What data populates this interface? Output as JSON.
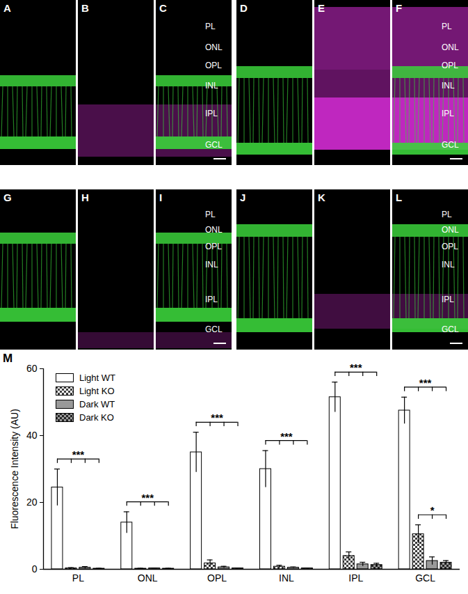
{
  "panels": {
    "letters": [
      "A",
      "B",
      "C",
      "D",
      "E",
      "F",
      "G",
      "H",
      "I",
      "J",
      "K",
      "L"
    ],
    "layers": [
      "PL",
      "ONL",
      "OPL",
      "INL",
      "IPL",
      "GCL"
    ]
  },
  "chart_data": {
    "type": "bar",
    "title": "M",
    "categories": [
      "PL",
      "ONL",
      "OPL",
      "INL",
      "IPL",
      "GCL"
    ],
    "y_label": "Fluorescence Intensity (AU)",
    "ylim": [
      0,
      60
    ],
    "yticks": [
      0,
      20,
      40,
      60
    ],
    "legend": "top-left",
    "series": [
      {
        "name": "Light WT",
        "color": "#ffffff",
        "marker": "solid",
        "values": [
          24.5,
          14,
          35,
          30,
          51.5,
          47.5
        ],
        "errors": [
          5.5,
          3.2,
          6,
          5.5,
          4.5,
          4
        ]
      },
      {
        "name": "Light KO",
        "color": "#ffffff",
        "marker": "checkered",
        "values": [
          0.3,
          0.2,
          1.8,
          0.8,
          4,
          10.5
        ],
        "errors": [
          0.2,
          0.1,
          1,
          0.4,
          1.2,
          2.8
        ]
      },
      {
        "name": "Dark WT",
        "color": "#999999",
        "marker": "solid",
        "values": [
          0.5,
          0.3,
          0.6,
          0.5,
          1.5,
          2.5
        ],
        "errors": [
          0.3,
          0.1,
          0.3,
          0.2,
          0.6,
          1.2
        ]
      },
      {
        "name": "Dark KO",
        "color": "#999999",
        "marker": "checkered",
        "values": [
          0.2,
          0.2,
          0.3,
          0.3,
          1.3,
          2
        ],
        "errors": [
          0.1,
          0.1,
          0.1,
          0.1,
          0.5,
          0.6
        ]
      }
    ],
    "annotations": [
      {
        "category": "PL",
        "from": "Light WT",
        "to": "Dark KO",
        "label": "***"
      },
      {
        "category": "ONL",
        "from": "Light WT",
        "to": "Dark KO",
        "label": "***"
      },
      {
        "category": "OPL",
        "from": "Light WT",
        "to": "Dark KO",
        "label": "***"
      },
      {
        "category": "INL",
        "from": "Light WT",
        "to": "Dark KO",
        "label": "***"
      },
      {
        "category": "IPL",
        "from": "Light WT",
        "to": "Dark KO",
        "label": "***"
      },
      {
        "category": "GCL",
        "from": "Light WT",
        "to": "Dark KO",
        "label": "***"
      },
      {
        "category": "GCL",
        "from": "Light KO",
        "to": "Dark KO",
        "label": "*"
      }
    ]
  }
}
